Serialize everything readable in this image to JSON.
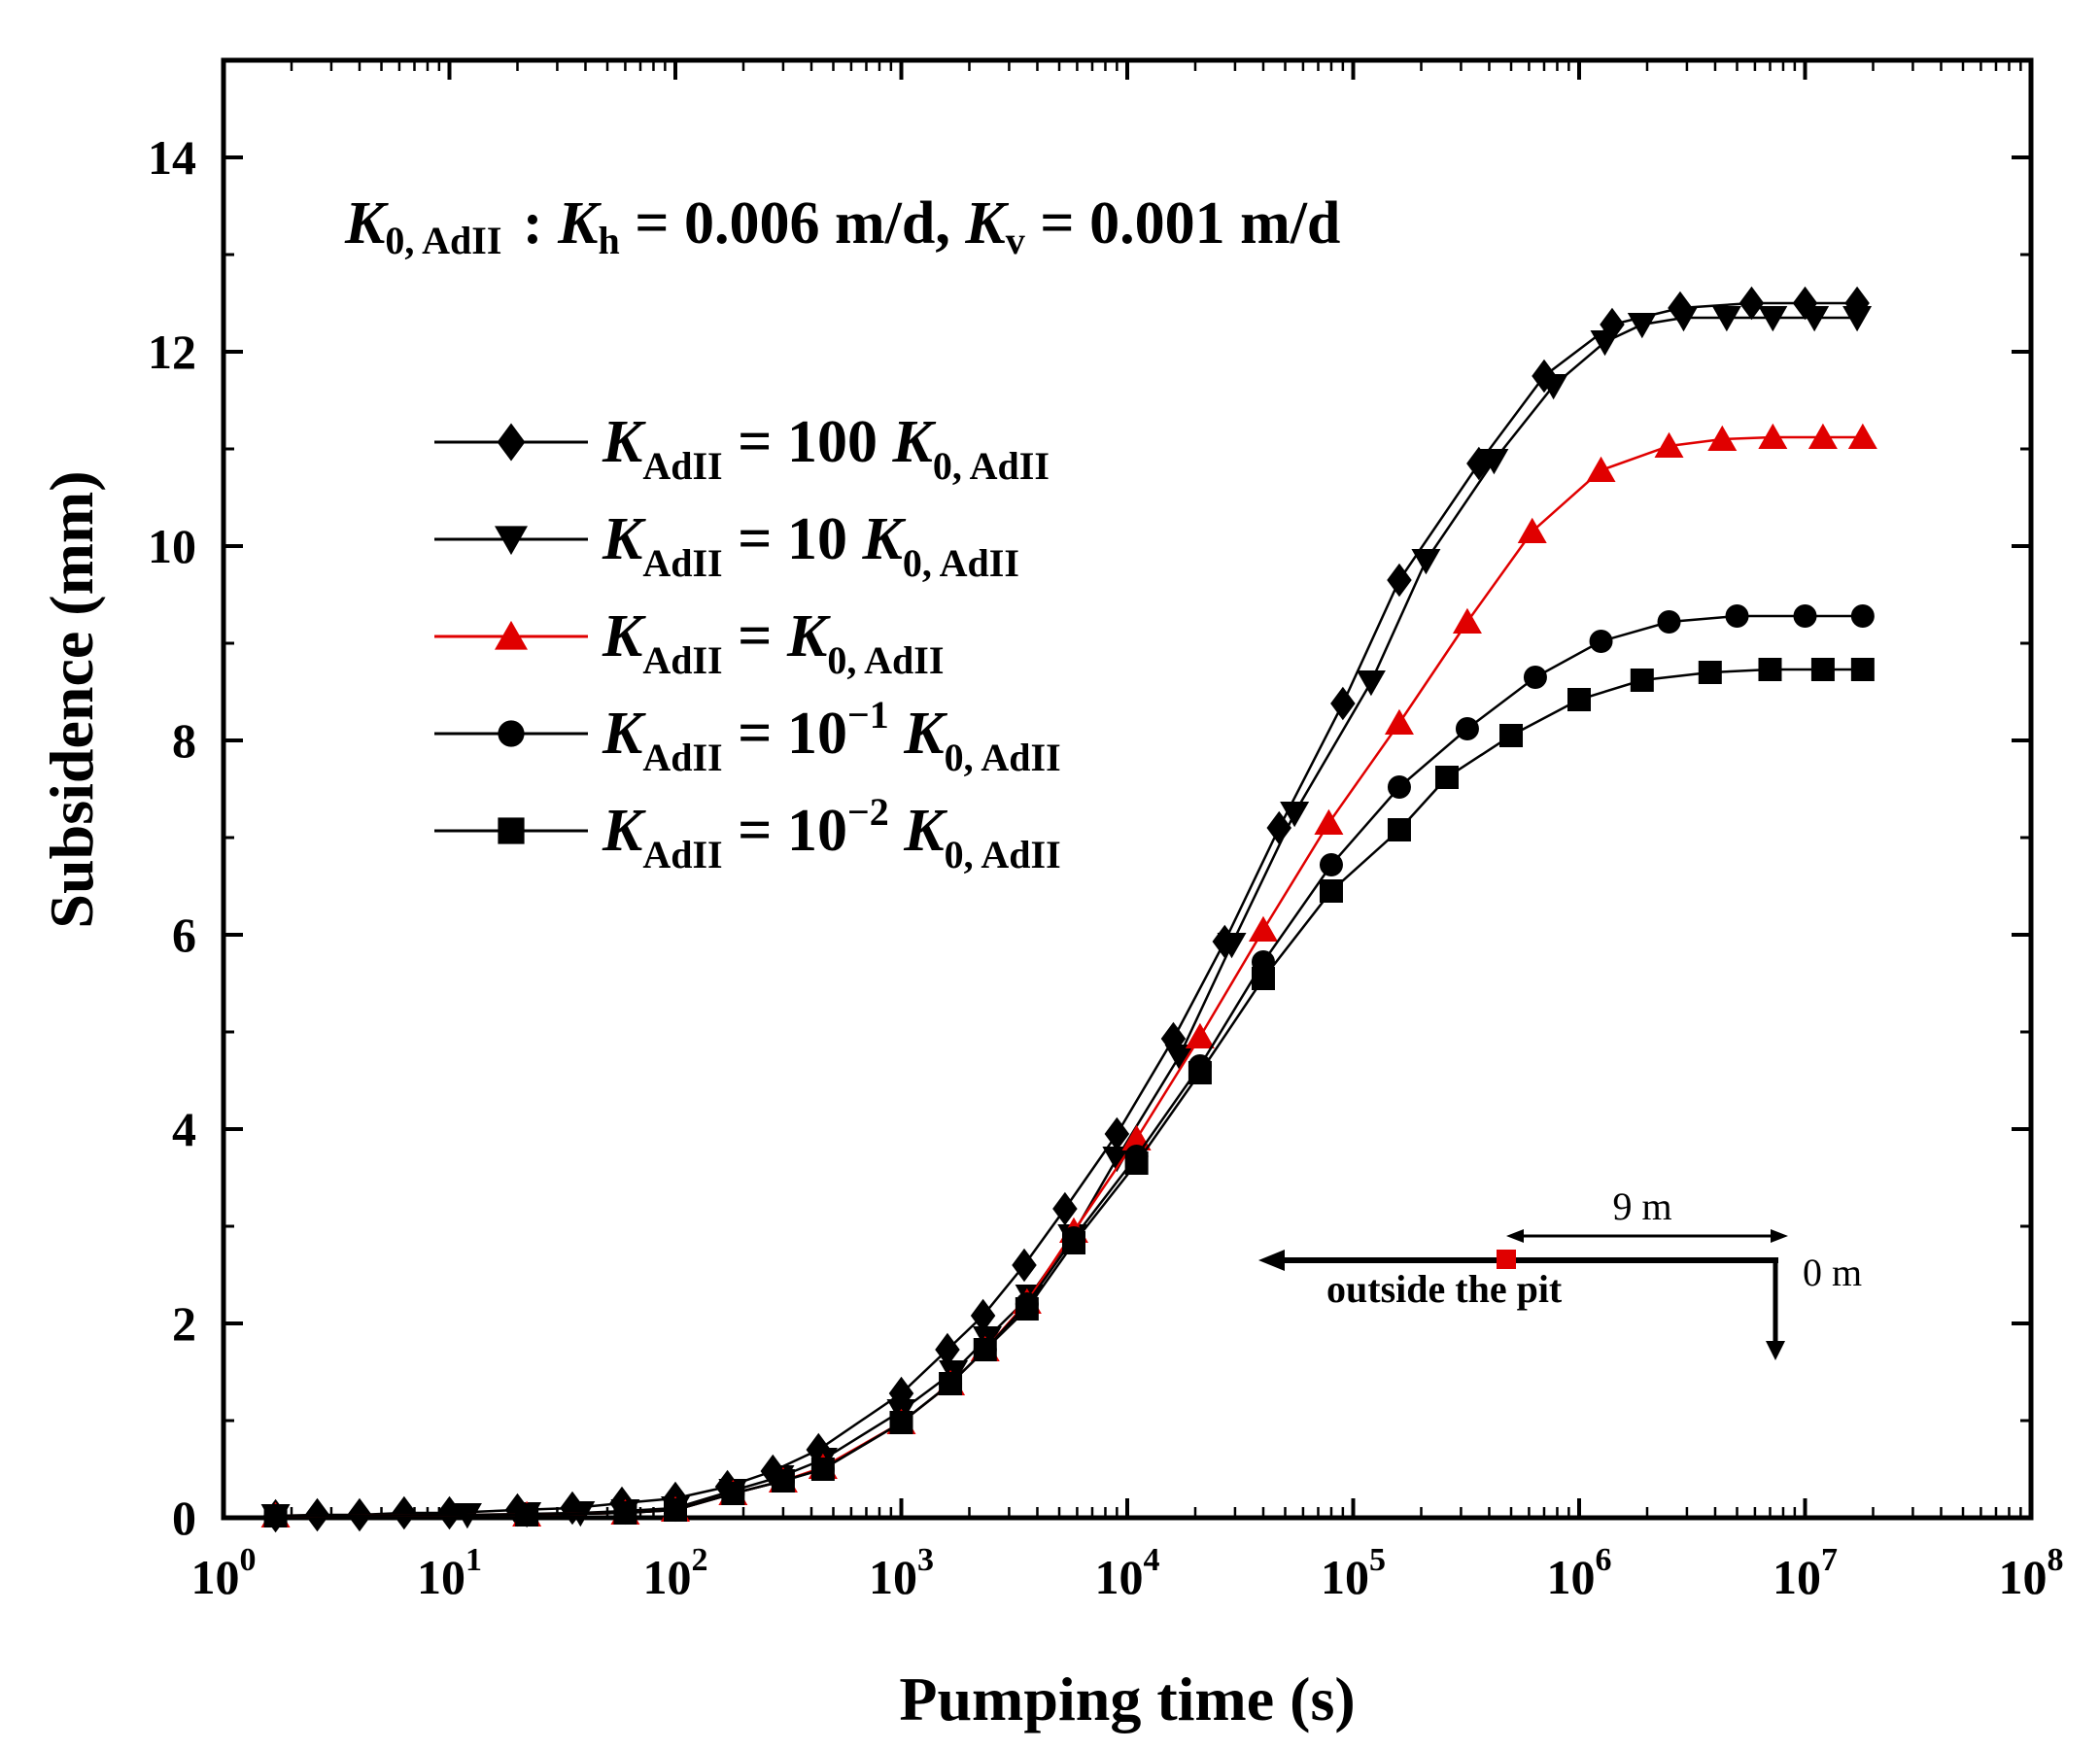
{
  "chart_data": {
    "type": "line",
    "xlabel": "Pumping time (s)",
    "ylabel": "Subsidence (mm)",
    "x_scale": "log",
    "xlim": [
      1,
      100000000
    ],
    "ylim": [
      0,
      15
    ],
    "x_ticks": [
      1,
      10,
      100,
      1000,
      10000,
      100000,
      1000000,
      10000000,
      100000000
    ],
    "x_tick_labels": [
      {
        "base": "10",
        "exp": "0"
      },
      {
        "base": "10",
        "exp": "1"
      },
      {
        "base": "10",
        "exp": "2"
      },
      {
        "base": "10",
        "exp": "3"
      },
      {
        "base": "10",
        "exp": "4"
      },
      {
        "base": "10",
        "exp": "5"
      },
      {
        "base": "10",
        "exp": "6"
      },
      {
        "base": "10",
        "exp": "7"
      },
      {
        "base": "10",
        "exp": "8"
      }
    ],
    "y_ticks": [
      0,
      2,
      4,
      6,
      8,
      10,
      12,
      14
    ],
    "y_tick_labels": [
      "0",
      "2",
      "4",
      "6",
      "8",
      "10",
      "12",
      "14"
    ],
    "grid": false,
    "legend_position": "upper-left",
    "annotation": {
      "k0_main": "K",
      "k0_sub": "0, AdII",
      "colon": " : ",
      "kh_main": "K",
      "kh_sub": "h",
      "kh_value": " = 0.006 m/d, ",
      "kv_main": "K",
      "kv_sub": "v",
      "kv_value": " = 0.001 m/d"
    },
    "series": [
      {
        "name_parts": {
          "k": "K",
          "k_sub": "AdII",
          "eq": " = 100 ",
          "exp": "",
          "k0": "K",
          "k0_sub": "0, AdII"
        },
        "marker": "diamond",
        "color": "#000000",
        "x": [
          1.7,
          2.6,
          4,
          6.3,
          10,
          20,
          35,
          58,
          100,
          170,
          270,
          430,
          1000,
          1600,
          2300,
          3500,
          5300,
          9000,
          16000,
          27000,
          47000,
          90000,
          160000,
          360000,
          700000,
          1400000,
          2800000,
          5800000,
          10000000,
          17000000
        ],
        "y": [
          0.02,
          0.03,
          0.03,
          0.05,
          0.05,
          0.08,
          0.1,
          0.15,
          0.2,
          0.32,
          0.48,
          0.7,
          1.28,
          1.73,
          2.08,
          2.6,
          3.18,
          3.95,
          4.93,
          5.93,
          7.1,
          8.38,
          9.65,
          10.85,
          11.75,
          12.28,
          12.45,
          12.5,
          12.5,
          12.5
        ]
      },
      {
        "name_parts": {
          "k": "K",
          "k_sub": "AdII",
          "eq": " = 10 ",
          "exp": "",
          "k0": "K",
          "k0_sub": "0, AdII"
        },
        "marker": "triangle-down",
        "color": "#000000",
        "x": [
          1.7,
          12,
          22,
          38,
          60,
          100,
          180,
          290,
          450,
          1000,
          1700,
          2400,
          3700,
          5700,
          9000,
          17000,
          29000,
          55000,
          120000,
          210000,
          420000,
          770000,
          1300000,
          1900000,
          2900000,
          4500000,
          7200000,
          11000000,
          17000000
        ],
        "y": [
          0.02,
          0.03,
          0.04,
          0.05,
          0.07,
          0.1,
          0.28,
          0.42,
          0.6,
          1.1,
          1.5,
          1.85,
          2.28,
          2.9,
          3.7,
          4.75,
          5.9,
          7.25,
          8.6,
          9.85,
          10.88,
          11.65,
          12.1,
          12.28,
          12.35,
          12.35,
          12.35,
          12.35,
          12.35
        ]
      },
      {
        "name_parts": {
          "k": "K",
          "k_sub": "AdII",
          "eq": " = ",
          "exp": "",
          "k0": "K",
          "k0_sub": "0, AdII"
        },
        "marker": "triangle-up",
        "color": "#e00000",
        "x": [
          1.7,
          22,
          60,
          100,
          180,
          300,
          450,
          1000,
          1650,
          2350,
          3600,
          5800,
          11000,
          21000,
          40000,
          78000,
          160000,
          320000,
          620000,
          1250000,
          2500000,
          4300000,
          7200000,
          12000000,
          18000000
        ],
        "y": [
          0.02,
          0.03,
          0.05,
          0.08,
          0.25,
          0.38,
          0.52,
          0.98,
          1.38,
          1.73,
          2.22,
          2.95,
          3.9,
          4.95,
          6.05,
          7.15,
          8.18,
          9.22,
          10.15,
          10.78,
          11.03,
          11.1,
          11.12,
          11.12,
          11.12
        ]
      },
      {
        "name_parts": {
          "k": "K",
          "k_sub": "AdII",
          "eq": " = 10",
          "exp": "−1",
          "k0": "K",
          "k0_sub": "0, AdII"
        },
        "marker": "circle",
        "color": "#000000",
        "x": [
          1.7,
          22,
          60,
          100,
          180,
          300,
          450,
          1000,
          1650,
          2350,
          3600,
          5800,
          11000,
          21000,
          40000,
          80000,
          160000,
          320000,
          640000,
          1250000,
          2500000,
          5000000,
          10000000,
          18000000
        ],
        "y": [
          0.02,
          0.03,
          0.05,
          0.08,
          0.25,
          0.38,
          0.5,
          0.98,
          1.38,
          1.73,
          2.2,
          2.88,
          3.72,
          4.65,
          5.72,
          6.72,
          7.52,
          8.12,
          8.65,
          9.02,
          9.22,
          9.28,
          9.28,
          9.28
        ]
      },
      {
        "name_parts": {
          "k": "K",
          "k_sub": "AdII",
          "eq": " = 10",
          "exp": "−2",
          "k0": "K",
          "k0_sub": "0, AdII"
        },
        "marker": "square",
        "color": "#000000",
        "x": [
          1.7,
          22,
          60,
          100,
          180,
          300,
          450,
          1000,
          1650,
          2350,
          3600,
          5800,
          11000,
          21000,
          40000,
          80000,
          160000,
          260000,
          500000,
          1000000,
          1900000,
          3800000,
          7000000,
          12000000,
          18000000
        ],
        "y": [
          0.02,
          0.03,
          0.05,
          0.08,
          0.25,
          0.38,
          0.5,
          0.98,
          1.38,
          1.73,
          2.15,
          2.83,
          3.65,
          4.58,
          5.55,
          6.45,
          7.08,
          7.62,
          8.05,
          8.42,
          8.62,
          8.7,
          8.73,
          8.73,
          8.73
        ]
      }
    ],
    "inset": {
      "label_distance": "9 m",
      "label_origin": "0 m",
      "label_side": "outside the pit",
      "marker_color": "#e00000"
    }
  }
}
